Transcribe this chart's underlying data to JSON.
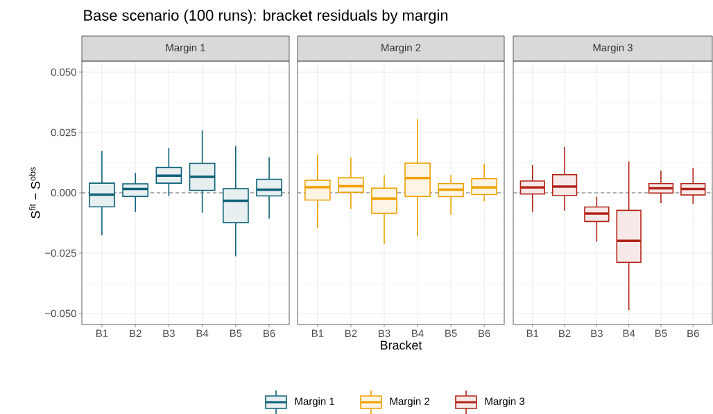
{
  "chart_data": [
    {
      "type": "box",
      "title": "Base scenario (100 runs): bracket residuals by margin",
      "ylabel": "S$^{fit}$ − S$^{obs}$",
      "categories": [
        "B1",
        "B2",
        "B3",
        "B4",
        "B5",
        "B6"
      ],
      "ylim": [
        -0.0546,
        0.0546
      ],
      "yticks": [
        {
          "value": -0.05,
          "label": "−0.050"
        },
        {
          "value": -0.025,
          "label": "−0.025"
        },
        {
          "value": 0,
          "label": "0.000"
        },
        {
          "value": 0.025,
          "label": "0.025"
        },
        {
          "value": 0.05,
          "label": "0.050"
        }
      ],
      "grid": true,
      "legend": "bottom",
      "ref_lines": [
        {
          "axis": "y",
          "value": 0,
          "color": "#666666",
          "line_style": "dashed"
        }
      ],
      "series": [
        {
          "name": "Margin 1",
          "color": "#0d6277",
          "boxes": [
            {
              "low": -0.0176,
              "q1": -0.0058,
              "median": -0.0008,
              "q3": 0.004,
              "high": 0.0173
            },
            {
              "low": -0.008,
              "q1": -0.0015,
              "median": 0.0016,
              "q3": 0.0037,
              "high": 0.0082
            },
            {
              "low": -0.0014,
              "q1": 0.004,
              "median": 0.0071,
              "q3": 0.0105,
              "high": 0.0186
            },
            {
              "low": -0.0083,
              "q1": 0.001,
              "median": 0.0066,
              "q3": 0.0122,
              "high": 0.0258
            },
            {
              "low": -0.0263,
              "q1": -0.0124,
              "median": -0.0033,
              "q3": 0.0017,
              "high": 0.0194
            },
            {
              "low": -0.0107,
              "q1": -0.0013,
              "median": 0.0013,
              "q3": 0.0056,
              "high": 0.0148
            }
          ]
        }
      ]
    },
    {
      "type": "box",
      "xlabel": "Bracket",
      "categories": [
        "B1",
        "B2",
        "B3",
        "B4",
        "B5",
        "B6"
      ],
      "ylim": [
        -0.0546,
        0.0546
      ],
      "yticks": [
        -0.05,
        -0.025,
        0,
        0.025,
        0.05
      ],
      "tick_labels": "x",
      "grid": true,
      "legend": "bottom",
      "ref_lines": [
        {
          "axis": "y",
          "value": 0,
          "color": "#666666",
          "line_style": "dashed"
        }
      ],
      "series": [
        {
          "name": "Margin 2",
          "color": "#f0a000",
          "boxes": [
            {
              "low": -0.0147,
              "q1": -0.003,
              "median": 0.0023,
              "q3": 0.0052,
              "high": 0.0157
            },
            {
              "low": -0.0066,
              "q1": 0.0002,
              "median": 0.0027,
              "q3": 0.0062,
              "high": 0.0146
            },
            {
              "low": -0.0212,
              "q1": -0.0085,
              "median": -0.0024,
              "q3": 0.0019,
              "high": 0.0073
            },
            {
              "low": -0.018,
              "q1": -0.0015,
              "median": 0.0061,
              "q3": 0.0123,
              "high": 0.0305
            },
            {
              "low": -0.0091,
              "q1": -0.0016,
              "median": 0.0013,
              "q3": 0.0038,
              "high": 0.0074
            },
            {
              "low": -0.0035,
              "q1": -0.0007,
              "median": 0.0022,
              "q3": 0.0058,
              "high": 0.0121
            }
          ]
        }
      ]
    },
    {
      "type": "box",
      "categories": [
        "B1",
        "B2",
        "B3",
        "B4",
        "B5",
        "B6"
      ],
      "ylim": [
        -0.0546,
        0.0546
      ],
      "yticks": [
        -0.05,
        -0.025,
        0,
        0.025,
        0.05
      ],
      "tick_labels": "x",
      "grid": true,
      "legend": "bottom",
      "ref_lines": [
        {
          "axis": "y",
          "value": 0,
          "color": "#666666",
          "line_style": "dashed"
        }
      ],
      "series": [
        {
          "name": "Margin 3",
          "color": "#b22418",
          "boxes": [
            {
              "low": -0.0079,
              "q1": -0.0005,
              "median": 0.0022,
              "q3": 0.0049,
              "high": 0.0115
            },
            {
              "low": -0.0074,
              "q1": -0.0011,
              "median": 0.0026,
              "q3": 0.0075,
              "high": 0.019
            },
            {
              "low": -0.0202,
              "q1": -0.0119,
              "median": -0.0086,
              "q3": -0.0059,
              "high": -0.0017
            },
            {
              "low": -0.0486,
              "q1": -0.0288,
              "median": -0.0199,
              "q3": -0.0073,
              "high": 0.013
            },
            {
              "low": -0.0043,
              "q1": -0.0001,
              "median": 0.0019,
              "q3": 0.0038,
              "high": 0.0092
            },
            {
              "low": -0.0046,
              "q1": -0.0009,
              "median": 0.0016,
              "q3": 0.0038,
              "high": 0.0103
            }
          ]
        }
      ]
    }
  ]
}
